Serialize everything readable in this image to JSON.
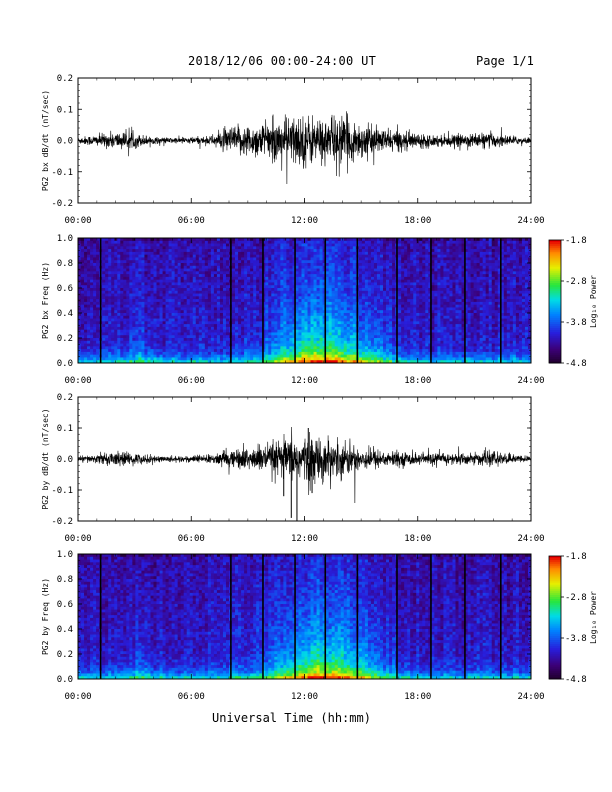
{
  "header": {
    "title": "2018/12/06  00:00-24:00 UT",
    "page": "Page 1/1"
  },
  "xlabel": "Universal Time (hh:mm)",
  "chart_data": [
    {
      "type": "line",
      "ylabel": "PG2 bx dB/dt (nT/sec)",
      "ylim": [
        -0.2,
        0.2
      ],
      "yticks": [
        "0.2",
        "0.1",
        "0.0",
        "-0.1",
        "-0.2"
      ],
      "xticks": [
        "00:00",
        "06:00",
        "12:00",
        "18:00",
        "24:00"
      ],
      "xlim_hours": [
        0,
        24
      ],
      "envelope": {
        "hours": [
          0,
          1,
          2,
          3,
          4,
          5,
          6,
          7,
          8,
          9,
          10,
          11,
          12,
          13,
          14,
          15,
          16,
          17,
          18,
          19,
          20,
          21,
          22,
          23,
          24
        ],
        "amplitude": [
          0.012,
          0.02,
          0.03,
          0.025,
          0.012,
          0.01,
          0.012,
          0.015,
          0.045,
          0.055,
          0.06,
          0.08,
          0.09,
          0.075,
          0.085,
          0.06,
          0.04,
          0.035,
          0.025,
          0.02,
          0.02,
          0.025,
          0.025,
          0.015,
          0.01
        ]
      }
    },
    {
      "type": "heatmap",
      "ylabel": "PG2 bx Freq (Hz)",
      "ylim": [
        0,
        1
      ],
      "yticks": [
        "1.0",
        "0.8",
        "0.6",
        "0.4",
        "0.2",
        "0.0"
      ],
      "xticks": [
        "00:00",
        "06:00",
        "12:00",
        "18:00",
        "24:00"
      ],
      "xlim_hours": [
        0,
        24
      ],
      "colorbar": {
        "label": "Log₁₀ Power",
        "ticks": [
          "-1.8",
          "-2.8",
          "-3.8",
          "-4.8"
        ],
        "range": [
          -4.8,
          -1.8
        ]
      },
      "data_gaps_hours": [
        1.2,
        8.1,
        9.8,
        11.5,
        13.1,
        14.8,
        16.9,
        18.7,
        20.5,
        22.4
      ]
    },
    {
      "type": "line",
      "ylabel": "PG2 by dB/dt (nT/sec)",
      "ylim": [
        -0.2,
        0.2
      ],
      "yticks": [
        "0.2",
        "0.1",
        "0.0",
        "-0.1",
        "-0.2"
      ],
      "xticks": [
        "00:00",
        "06:00",
        "12:00",
        "18:00",
        "24:00"
      ],
      "xlim_hours": [
        0,
        24
      ],
      "envelope": {
        "hours": [
          0,
          1,
          2,
          3,
          4,
          5,
          6,
          7,
          8,
          9,
          10,
          11,
          12,
          13,
          14,
          15,
          16,
          17,
          18,
          19,
          20,
          21,
          22,
          23,
          24
        ],
        "amplitude": [
          0.01,
          0.015,
          0.025,
          0.02,
          0.012,
          0.01,
          0.012,
          0.015,
          0.03,
          0.04,
          0.05,
          0.07,
          0.08,
          0.07,
          0.06,
          0.04,
          0.03,
          0.025,
          0.02,
          0.02,
          0.02,
          0.02,
          0.025,
          0.015,
          0.01
        ]
      },
      "spikes": [
        {
          "hour": 11.3,
          "value": -0.19
        },
        {
          "hour": 11.6,
          "value": -0.2
        },
        {
          "hour": 10.9,
          "value": -0.12
        },
        {
          "hour": 12.4,
          "value": -0.11
        },
        {
          "hour": 12.2,
          "value": 0.1
        }
      ]
    },
    {
      "type": "heatmap",
      "ylabel": "PG2 by Freq (Hz)",
      "ylim": [
        0,
        1
      ],
      "yticks": [
        "1.0",
        "0.8",
        "0.6",
        "0.4",
        "0.2",
        "0.0"
      ],
      "xticks": [
        "00:00",
        "06:00",
        "12:00",
        "18:00",
        "24:00"
      ],
      "xlim_hours": [
        0,
        24
      ],
      "colorbar": {
        "label": "Log₁₀ Power",
        "ticks": [
          "-1.8",
          "-2.8",
          "-3.8",
          "-4.8"
        ],
        "range": [
          -4.8,
          -1.8
        ]
      },
      "data_gaps_hours": [
        1.2,
        8.1,
        9.8,
        11.5,
        13.1,
        14.8,
        16.9,
        18.7,
        20.5,
        22.4
      ]
    }
  ]
}
